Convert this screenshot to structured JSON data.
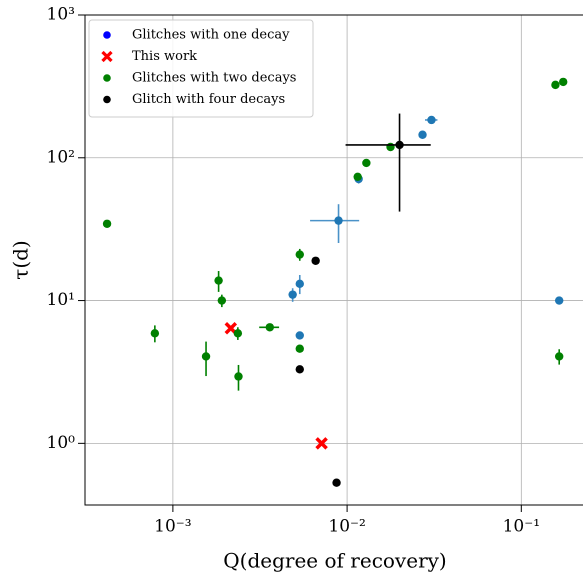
{
  "chart_data": {
    "type": "scatter",
    "xlabel": "Q(degree of recovery)",
    "ylabel": "τ(d)",
    "xscale": "log",
    "yscale": "log",
    "xlim": [
      0.000313,
      0.226
    ],
    "ylim": [
      0.37,
      1000
    ],
    "xticks": [
      {
        "value": 0.001,
        "label": "10⁻³"
      },
      {
        "value": 0.01,
        "label": "10⁻²"
      },
      {
        "value": 0.1,
        "label": "10⁻¹"
      }
    ],
    "yticks": [
      {
        "value": 1,
        "label": "10⁰"
      },
      {
        "value": 10,
        "label": "10¹"
      },
      {
        "value": 100,
        "label": "10²"
      },
      {
        "value": 1000,
        "label": "10³"
      }
    ],
    "grid": true,
    "legend": "upper left",
    "series": [
      {
        "name": "Glitches with one decay",
        "color": "#1f77b4",
        "marker": "o",
        "x": [
          0.0305,
          0.0271,
          0.01165,
          0.00893,
          0.00535,
          0.00487,
          0.00535,
          0.165
        ],
        "values": [
          184,
          145,
          71,
          36.3,
          13.1,
          11.0,
          5.7,
          10
        ],
        "xerr": [
          0.0025,
          null,
          null,
          0.0028,
          null,
          null,
          null,
          null
        ],
        "yerr": [
          null,
          null,
          5,
          11,
          2,
          1.2,
          null,
          null
        ]
      },
      {
        "name": "This work",
        "color": "#ff0000",
        "marker": "x",
        "x": [
          0.00215,
          0.00714
        ],
        "values": [
          6.4,
          1.0
        ],
        "xerr": [
          null,
          null
        ],
        "yerr": [
          null,
          null
        ]
      },
      {
        "name": "Glitches with two decays",
        "color": "#008000",
        "marker": "o",
        "x": [
          0.000419,
          0.000788,
          0.00155,
          0.00183,
          0.00191,
          0.00236,
          0.00238,
          0.0036,
          0.00535,
          0.00535,
          0.0115,
          0.0129,
          0.01775,
          0.157,
          0.174,
          0.165
        ],
        "values": [
          34.5,
          5.9,
          4.06,
          13.8,
          10.0,
          5.9,
          2.94,
          6.5,
          21,
          4.6,
          73.6,
          92,
          119,
          324,
          340,
          4.06
        ],
        "xerr": [
          null,
          null,
          null,
          null,
          null,
          null,
          null,
          0.00047,
          null,
          null,
          null,
          null,
          null,
          null,
          null,
          null
        ],
        "yerr": [
          null,
          0.8,
          1.1,
          2.3,
          1,
          0.6,
          0.6,
          null,
          2,
          null,
          null,
          null,
          null,
          null,
          null,
          0.5
        ]
      },
      {
        "name": "Glitch with four decays",
        "color": "#000000",
        "marker": "o",
        "x": [
          0.02,
          0.0066,
          0.00535,
          0.0087
        ],
        "values": [
          123,
          19,
          3.3,
          0.53
        ],
        "xerr": [
          0.0102,
          null,
          null,
          null
        ],
        "yerr": [
          81,
          null,
          null,
          null
        ]
      }
    ]
  }
}
